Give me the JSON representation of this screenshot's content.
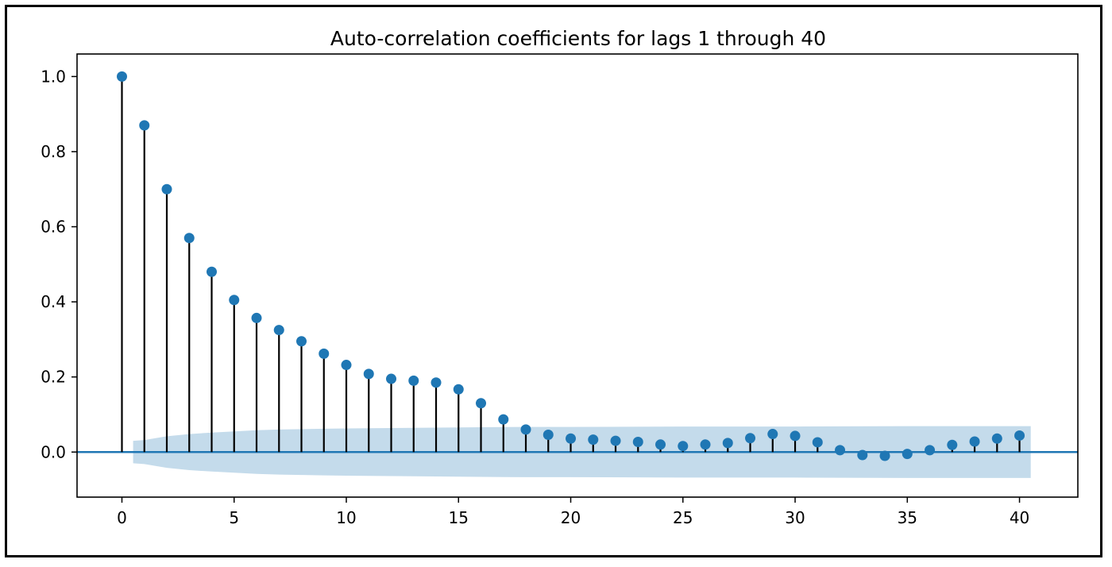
{
  "chart_data": {
    "type": "stem",
    "title": "Auto-correlation coefficients for lags 1 through 40",
    "xlabel": "",
    "ylabel": "",
    "xlim": [
      -2,
      42.6
    ],
    "ylim": [
      -0.12,
      1.06
    ],
    "x_ticks": [
      0,
      5,
      10,
      15,
      20,
      25,
      30,
      35,
      40
    ],
    "y_ticks": [
      0.0,
      0.2,
      0.4,
      0.6,
      0.8,
      1.0
    ],
    "x_tick_labels": [
      "0",
      "5",
      "10",
      "15",
      "20",
      "25",
      "30",
      "35",
      "40"
    ],
    "y_tick_labels": [
      "0.0",
      "0.2",
      "0.4",
      "0.6",
      "0.8",
      "1.0"
    ],
    "lags": [
      0,
      1,
      2,
      3,
      4,
      5,
      6,
      7,
      8,
      9,
      10,
      11,
      12,
      13,
      14,
      15,
      16,
      17,
      18,
      19,
      20,
      21,
      22,
      23,
      24,
      25,
      26,
      27,
      28,
      29,
      30,
      31,
      32,
      33,
      34,
      35,
      36,
      37,
      38,
      39,
      40
    ],
    "values": [
      1.0,
      0.87,
      0.7,
      0.57,
      0.48,
      0.405,
      0.357,
      0.325,
      0.295,
      0.262,
      0.232,
      0.208,
      0.195,
      0.19,
      0.185,
      0.167,
      0.13,
      0.087,
      0.06,
      0.046,
      0.036,
      0.033,
      0.03,
      0.027,
      0.02,
      0.016,
      0.02,
      0.024,
      0.037,
      0.048,
      0.043,
      0.026,
      0.005,
      -0.008,
      -0.01,
      -0.005,
      0.005,
      0.019,
      0.028,
      0.036,
      0.044
    ],
    "confidence_band": {
      "lags": [
        0.5,
        1,
        2,
        3,
        4,
        5,
        6,
        7,
        8,
        9,
        10,
        12,
        14,
        16,
        18,
        20,
        25,
        30,
        35,
        40,
        40.5
      ],
      "upper": [
        0.03,
        0.032,
        0.042,
        0.048,
        0.052,
        0.055,
        0.058,
        0.06,
        0.061,
        0.062,
        0.063,
        0.064,
        0.065,
        0.066,
        0.067,
        0.067,
        0.068,
        0.068,
        0.069,
        0.069,
        0.069
      ],
      "lower": [
        -0.03,
        -0.032,
        -0.042,
        -0.048,
        -0.052,
        -0.055,
        -0.058,
        -0.06,
        -0.061,
        -0.062,
        -0.063,
        -0.064,
        -0.065,
        -0.066,
        -0.067,
        -0.067,
        -0.068,
        -0.068,
        -0.069,
        -0.069,
        -0.069
      ]
    },
    "grid": false,
    "colors": {
      "marker": "#1f77b4",
      "stem": "#000000",
      "baseline": "#1f77b4",
      "band": "#c4dbeb"
    }
  }
}
